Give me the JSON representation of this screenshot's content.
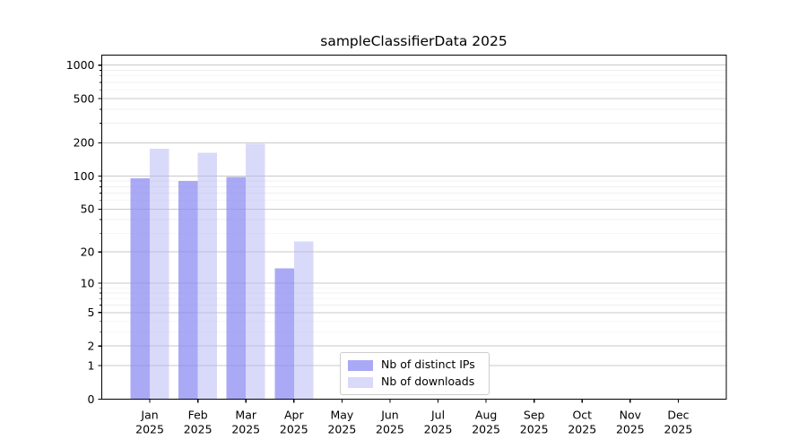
{
  "title": "sampleClassifierData 2025",
  "chart_data": {
    "type": "bar",
    "title": "sampleClassifierData 2025",
    "categories": [
      "Jan",
      "Feb",
      "Mar",
      "Apr",
      "May",
      "Jun",
      "Jul",
      "Aug",
      "Sep",
      "Oct",
      "Nov",
      "Dec"
    ],
    "year": "2025",
    "series": [
      {
        "name": "Nb of distinct IPs",
        "color": "#a9a9f6",
        "fill": "rgba(140,140,243,0.75)",
        "values": [
          95,
          90,
          98,
          14,
          0,
          0,
          0,
          0,
          0,
          0,
          0,
          0
        ]
      },
      {
        "name": "Nb of downloads",
        "color": "#d9d9f9",
        "fill": "rgba(179,179,243,0.5)",
        "values": [
          177,
          163,
          195,
          25,
          0,
          0,
          0,
          0,
          0,
          0,
          0,
          0
        ]
      }
    ],
    "yscale": "log1p",
    "yticks": [
      0,
      1,
      2,
      5,
      10,
      20,
      50,
      100,
      200,
      500,
      1000
    ],
    "yminor": [
      3,
      4,
      6,
      7,
      8,
      9,
      30,
      40,
      60,
      70,
      80,
      90,
      300,
      400,
      600,
      700,
      800,
      900
    ],
    "ylim": [
      0,
      1232
    ],
    "xlabel": "",
    "ylabel": "",
    "grid": true,
    "legend_position": "lower center-left inside plot"
  }
}
